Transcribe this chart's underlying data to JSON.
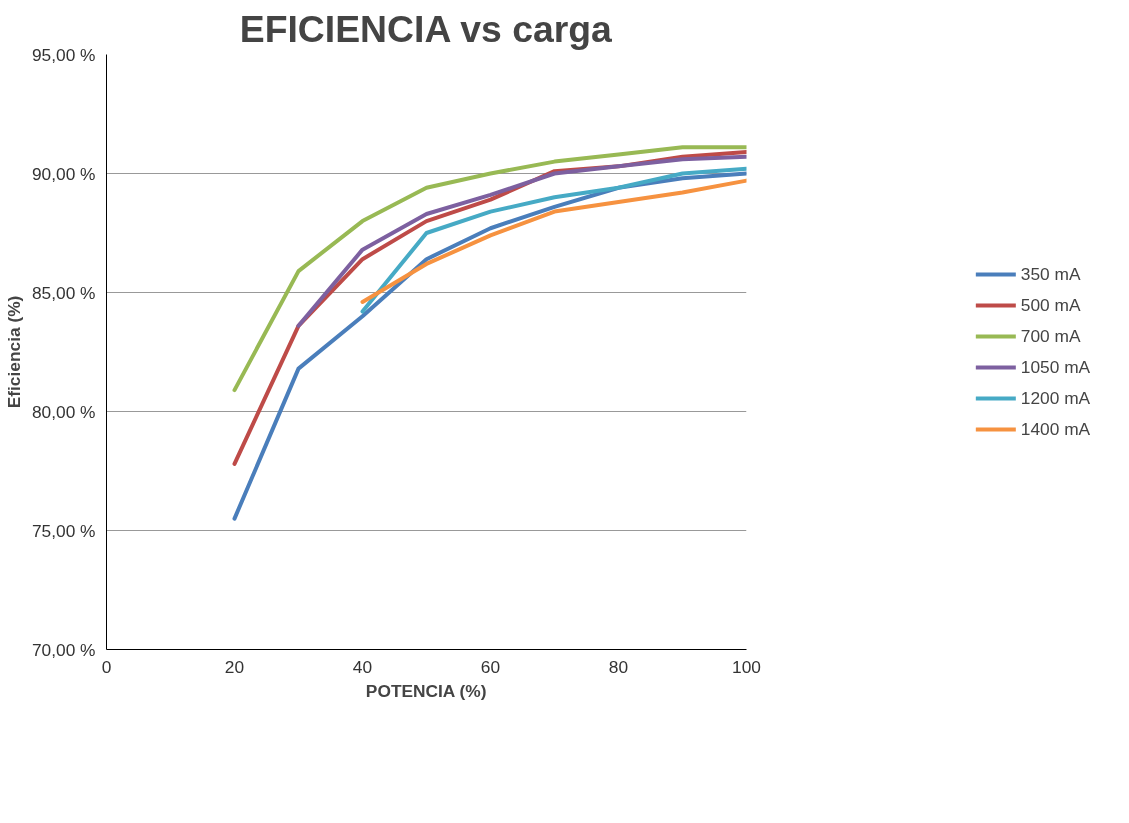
{
  "chart_data": {
    "type": "line",
    "title": "EFICIENCIA vs carga",
    "xlabel": "POTENCIA (%)",
    "ylabel": "Eficiencia (%)",
    "x": [
      20,
      30,
      40,
      50,
      60,
      70,
      80,
      90,
      100
    ],
    "series": [
      {
        "name": "350 mA",
        "color": "#4a7ebb",
        "values": [
          75.5,
          81.8,
          84.0,
          86.4,
          87.7,
          88.6,
          89.4,
          89.8,
          90.0
        ]
      },
      {
        "name": "500 mA",
        "color": "#be4b48",
        "values": [
          77.8,
          83.6,
          86.4,
          88.0,
          88.9,
          90.1,
          90.3,
          90.7,
          90.9
        ]
      },
      {
        "name": "700 mA",
        "color": "#98b954",
        "values": [
          80.9,
          85.9,
          88.0,
          89.4,
          90.0,
          90.5,
          90.8,
          91.1,
          91.1
        ]
      },
      {
        "name": "1050 mA",
        "color": "#7d60a0",
        "values": [
          null,
          83.6,
          86.8,
          88.3,
          89.1,
          90.0,
          90.3,
          90.6,
          90.7
        ]
      },
      {
        "name": "1200 mA",
        "color": "#46aac5",
        "values": [
          null,
          null,
          84.2,
          87.5,
          88.4,
          89.0,
          89.4,
          90.0,
          90.2
        ]
      },
      {
        "name": "1400 mA",
        "color": "#f69240",
        "values": [
          null,
          null,
          84.6,
          86.2,
          87.4,
          88.4,
          88.8,
          89.2,
          89.7
        ]
      }
    ],
    "xlim": [
      0,
      100
    ],
    "xticks": [
      0,
      20,
      40,
      60,
      80,
      100
    ],
    "ylim": [
      70,
      95
    ],
    "yticks": [
      {
        "value": 70,
        "label": "70,00 %"
      },
      {
        "value": 75,
        "label": "75,00 %"
      },
      {
        "value": 80,
        "label": "80,00 %"
      },
      {
        "value": 85,
        "label": "85,00 %"
      },
      {
        "value": 90,
        "label": "90,00 %"
      },
      {
        "value": 95,
        "label": "95,00 %"
      }
    ],
    "grid": "y",
    "legend": "right",
    "marker": "none",
    "line_style": "solid"
  }
}
